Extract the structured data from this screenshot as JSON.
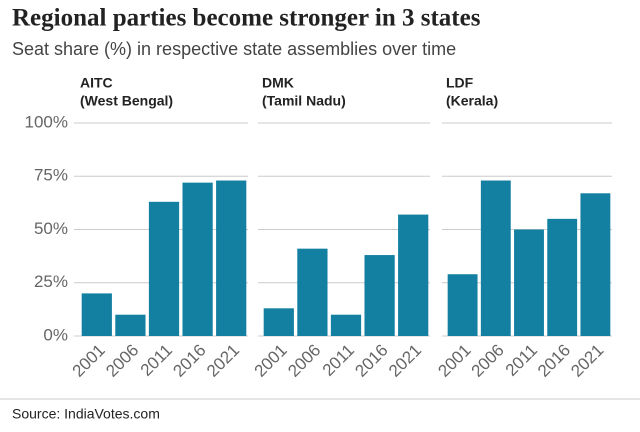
{
  "title": "Regional parties become stronger in 3 states",
  "subtitle": "Seat share (%) in respective state assemblies over time",
  "source": "Source: IndiaVotes.com",
  "chart_data": [
    {
      "type": "bar",
      "title": "AITC",
      "subtitle": "(West Bengal)",
      "categories": [
        "2001",
        "2006",
        "2011",
        "2016",
        "2021"
      ],
      "values": [
        20,
        10,
        63,
        72,
        73
      ],
      "color": "#1380a1",
      "ylim": [
        0,
        100
      ],
      "grid": true,
      "yticks": [
        {
          "value": 0,
          "label": "0%"
        },
        {
          "value": 25,
          "label": "25%"
        },
        {
          "value": 50,
          "label": "50%"
        },
        {
          "value": 75,
          "label": "75%"
        },
        {
          "value": 100,
          "label": "100%"
        }
      ]
    },
    {
      "type": "bar",
      "title": "DMK",
      "subtitle": "(Tamil Nadu)",
      "categories": [
        "2001",
        "2006",
        "2011",
        "2016",
        "2021"
      ],
      "values": [
        13,
        41,
        10,
        38,
        57
      ],
      "color": "#1380a1",
      "ylim": [
        0,
        100
      ],
      "grid": true
    },
    {
      "type": "bar",
      "title": "LDF",
      "subtitle": "(Kerala)",
      "categories": [
        "2001",
        "2006",
        "2011",
        "2016",
        "2021"
      ],
      "values": [
        29,
        73,
        50,
        55,
        67
      ],
      "color": "#1380a1",
      "ylim": [
        0,
        100
      ],
      "grid": true
    }
  ]
}
